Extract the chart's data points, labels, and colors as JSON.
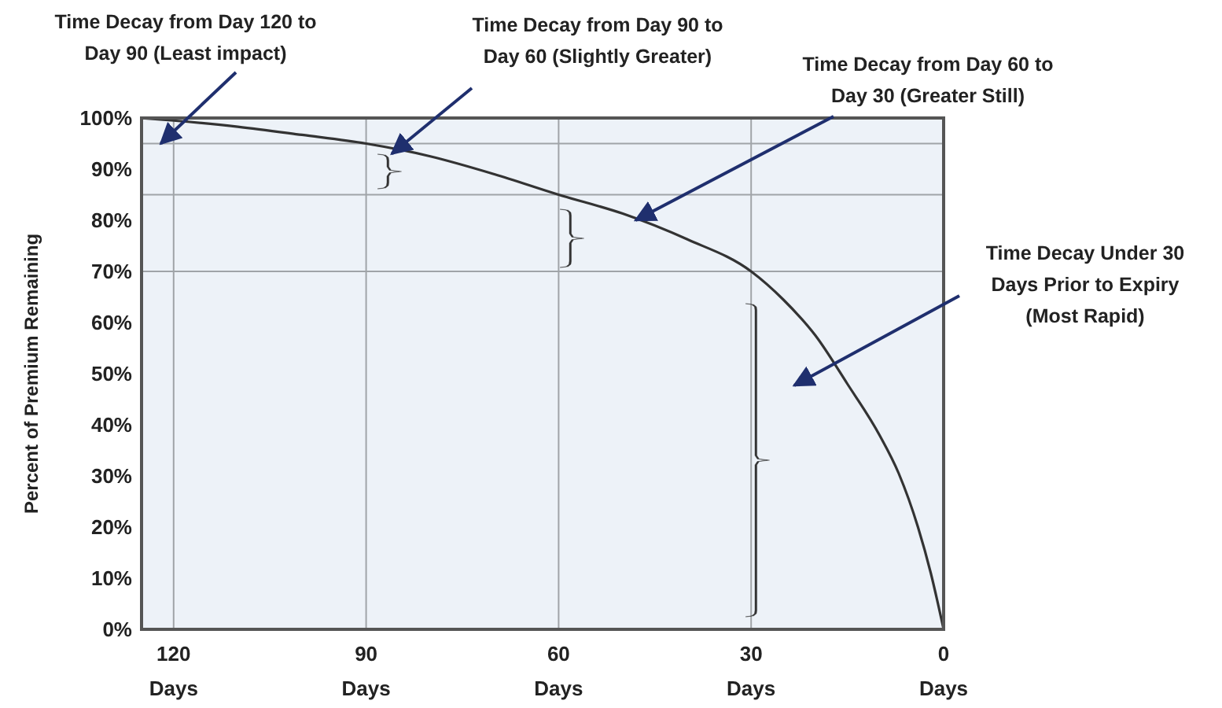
{
  "chart_data": {
    "type": "line",
    "ylabel": "Percent of Premium Remaining",
    "x": [
      125,
      120,
      110,
      100,
      90,
      80,
      70,
      60,
      50,
      40,
      30,
      25,
      20,
      15,
      10,
      7,
      4,
      2,
      0
    ],
    "series": [
      {
        "color": "#333333",
        "values": [
          100,
          99.5,
          98.3,
          96.7,
          95,
          92.5,
          89,
          85,
          81.3,
          76.3,
          70,
          64.5,
          57.5,
          48,
          38,
          30.5,
          20,
          11,
          0
        ]
      }
    ],
    "xlim": [
      125,
      0
    ],
    "xticks": [
      {
        "value": 120,
        "label": "120 Days"
      },
      {
        "value": 90,
        "label": "90 Days"
      },
      {
        "value": 60,
        "label": "60 Days"
      },
      {
        "value": 30,
        "label": "30 Days"
      },
      {
        "value": 0,
        "label": "0 Days"
      }
    ],
    "ylim": [
      0,
      100
    ],
    "yticks": [
      {
        "value": 0,
        "label": "0%"
      },
      {
        "value": 10,
        "label": "10%"
      },
      {
        "value": 20,
        "label": "20%"
      },
      {
        "value": 30,
        "label": "30%"
      },
      {
        "value": 40,
        "label": "40%"
      },
      {
        "value": 50,
        "label": "50%"
      },
      {
        "value": 60,
        "label": "60%"
      },
      {
        "value": 70,
        "label": "70%"
      },
      {
        "value": 80,
        "label": "80%"
      },
      {
        "value": 90,
        "label": "90%"
      },
      {
        "value": 100,
        "label": "100%"
      }
    ],
    "grid": "x",
    "marker": "none",
    "line_style": "solid",
    "ref_lines": [
      {
        "axis": "y",
        "value": 95,
        "color": "#a0a4a8"
      },
      {
        "axis": "y",
        "value": 85,
        "color": "#a0a4a8"
      },
      {
        "axis": "y",
        "value": 70,
        "color": "#a0a4a8"
      }
    ],
    "annotations": [
      {
        "text": "Time Decay from Day 120 to Day 90 (Least impact)",
        "x": 122,
        "y": 95
      },
      {
        "text": "Time Decay from Day 90 to Day 60 (Slightly Greater)",
        "x": 86,
        "y": 93
      },
      {
        "text": "Time Decay from Day 60 to Day 30 (Greater Still)",
        "x": 48,
        "y": 80
      },
      "Time Decay Under 30 Days Prior to Expiry (Most Rapid)"
    ]
  }
}
